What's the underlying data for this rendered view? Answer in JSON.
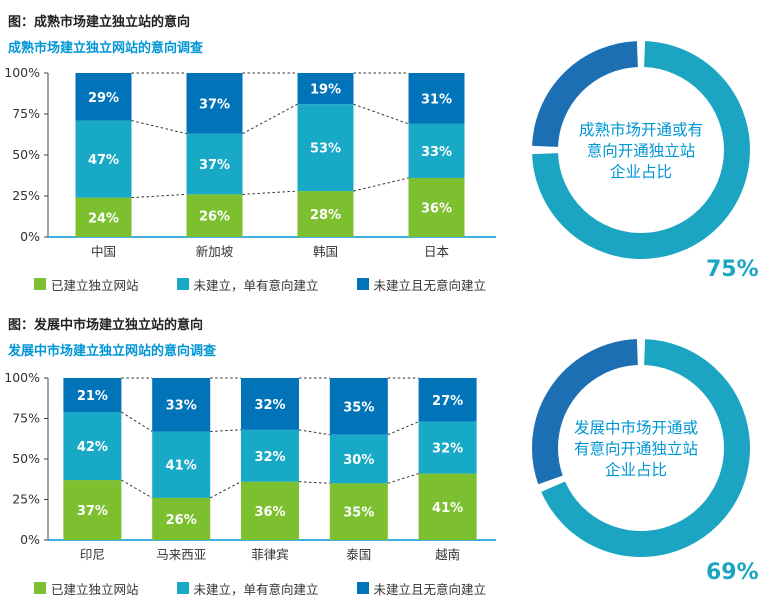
{
  "colors": {
    "built": "#7cbf2f",
    "intend": "#17a9c6",
    "no_intent": "#0073b9",
    "ring_main": "#1ba5c2",
    "ring_rest": "#1d6fb4",
    "accent": "#0096d6"
  },
  "legend": [
    "已建立独立网站",
    "未建立，单有意向建立",
    "未建立且无意向建立"
  ],
  "sections": [
    {
      "title": "图：成熟市场建立独立站的意向",
      "subtitle": "成熟市场建立独立网站的意向调查",
      "ring_text": [
        "成熟市场开通或有",
        "意向开通独立站",
        "企业占比"
      ],
      "ring_percent": "75%"
    },
    {
      "title": "图：发展中市场建立独立站的意向",
      "subtitle": "发展中市场建立独立网站的意向调查",
      "ring_text": [
        "发展中市场开通或",
        "有意向开通独立站",
        "企业占比"
      ],
      "ring_percent": "69%"
    }
  ],
  "chart_data": [
    {
      "type": "bar",
      "stacked": true,
      "y_ticks": [
        "0%",
        "25%",
        "50%",
        "75%",
        "100%"
      ],
      "ylim": [
        0,
        100
      ],
      "categories": [
        "中国",
        "新加坡",
        "韩国",
        "日本"
      ],
      "series": [
        {
          "name": "已建立独立网站",
          "values": [
            24,
            26,
            28,
            36
          ]
        },
        {
          "name": "未建立，单有意向建立",
          "values": [
            47,
            37,
            53,
            33
          ]
        },
        {
          "name": "未建立且无意向建立",
          "values": [
            29,
            37,
            19,
            31
          ]
        }
      ]
    },
    {
      "type": "pie",
      "slices": [
        75,
        25
      ]
    },
    {
      "type": "bar",
      "stacked": true,
      "y_ticks": [
        "0%",
        "25%",
        "50%",
        "75%",
        "100%"
      ],
      "ylim": [
        0,
        100
      ],
      "categories": [
        "印尼",
        "马来西亚",
        "菲律宾",
        "泰国",
        "越南"
      ],
      "series": [
        {
          "name": "已建立独立网站",
          "values": [
            37,
            26,
            36,
            35,
            41
          ]
        },
        {
          "name": "未建立，单有意向建立",
          "values": [
            42,
            41,
            32,
            30,
            32
          ]
        },
        {
          "name": "未建立且无意向建立",
          "values": [
            21,
            33,
            32,
            35,
            27
          ]
        }
      ]
    },
    {
      "type": "pie",
      "slices": [
        69,
        31
      ]
    }
  ]
}
